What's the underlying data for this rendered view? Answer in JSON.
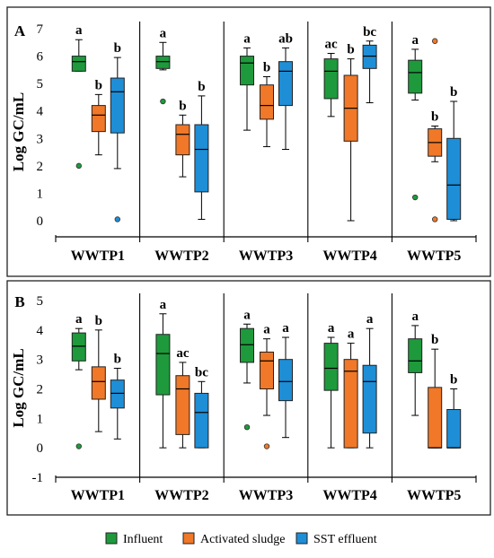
{
  "colors": {
    "influent": "#1e9a3c",
    "activated_sludge": "#f07828",
    "sst_effluent": "#1e8ed6",
    "frame": "#222222"
  },
  "legend": {
    "items": [
      {
        "label": "Influent",
        "color_key": "influent"
      },
      {
        "label": "Activated sludge",
        "color_key": "activated_sludge"
      },
      {
        "label": "SST effluent",
        "color_key": "sst_effluent"
      }
    ]
  },
  "chart_data": [
    {
      "panel": "A",
      "type": "box",
      "ylabel": "Log GC/mL",
      "ylim": [
        -0.3,
        7
      ],
      "yticks": [
        "0",
        "1",
        "2",
        "3",
        "4",
        "5",
        "6",
        "7"
      ],
      "categories": [
        "WWTP1",
        "WWTP2",
        "WWTP3",
        "WWTP4",
        "WWTP5"
      ],
      "series": [
        {
          "name": "Influent",
          "color_key": "influent",
          "boxes": [
            {
              "min": 5.45,
              "q1": 5.45,
              "median": 5.8,
              "q3": 6.0,
              "max": 6.6,
              "outliers": [
                2.0
              ],
              "label": "a"
            },
            {
              "min": 5.5,
              "q1": 5.55,
              "median": 5.8,
              "q3": 6.0,
              "max": 6.5,
              "outliers": [
                4.35
              ],
              "label": "a"
            },
            {
              "min": 3.3,
              "q1": 4.95,
              "median": 5.75,
              "q3": 6.0,
              "max": 6.3,
              "outliers": [],
              "label": "a"
            },
            {
              "min": 3.8,
              "q1": 4.45,
              "median": 5.45,
              "q3": 5.9,
              "max": 6.1,
              "outliers": [],
              "label": "ac"
            },
            {
              "min": 4.4,
              "q1": 4.65,
              "median": 5.4,
              "q3": 5.85,
              "max": 6.25,
              "outliers": [
                0.85
              ],
              "label": "a"
            }
          ]
        },
        {
          "name": "Activated sludge",
          "color_key": "activated_sludge",
          "boxes": [
            {
              "min": 2.4,
              "q1": 3.25,
              "median": 3.85,
              "q3": 4.2,
              "max": 4.6,
              "outliers": [],
              "label": "b"
            },
            {
              "min": 1.6,
              "q1": 2.4,
              "median": 3.15,
              "q3": 3.5,
              "max": 3.85,
              "outliers": [],
              "label": "b"
            },
            {
              "min": 2.7,
              "q1": 3.7,
              "median": 4.2,
              "q3": 4.95,
              "max": 5.25,
              "outliers": [],
              "label": "b"
            },
            {
              "min": 0.0,
              "q1": 2.9,
              "median": 4.1,
              "q3": 5.3,
              "max": 5.9,
              "outliers": [],
              "label": "b"
            },
            {
              "min": 2.15,
              "q1": 2.35,
              "median": 2.85,
              "q3": 3.35,
              "max": 3.45,
              "outliers": [
                0.05,
                6.55
              ],
              "label": "b"
            }
          ]
        },
        {
          "name": "SST effluent",
          "color_key": "sst_effluent",
          "boxes": [
            {
              "min": 1.9,
              "q1": 3.2,
              "median": 4.7,
              "q3": 5.2,
              "max": 5.95,
              "outliers": [
                0.05
              ],
              "label": "b"
            },
            {
              "min": 0.05,
              "q1": 1.05,
              "median": 2.6,
              "q3": 3.5,
              "max": 4.55,
              "outliers": [],
              "label": "b"
            },
            {
              "min": 2.6,
              "q1": 4.2,
              "median": 5.45,
              "q3": 5.8,
              "max": 6.3,
              "outliers": [],
              "label": "ab"
            },
            {
              "min": 4.3,
              "q1": 5.55,
              "median": 6.0,
              "q3": 6.4,
              "max": 6.55,
              "outliers": [],
              "label": "bc"
            },
            {
              "min": 0.0,
              "q1": 0.05,
              "median": 1.3,
              "q3": 3.0,
              "max": 4.35,
              "outliers": [],
              "label": "b"
            }
          ]
        }
      ]
    },
    {
      "panel": "B",
      "type": "box",
      "ylabel": "Log GC/mL",
      "ylim": [
        -1,
        5
      ],
      "yticks": [
        "-1",
        "0",
        "1",
        "2",
        "3",
        "4",
        "5"
      ],
      "categories": [
        "WWTP1",
        "WWTP2",
        "WWTP3",
        "WWTP4",
        "WWTP5"
      ],
      "series": [
        {
          "name": "Influent",
          "color_key": "influent",
          "boxes": [
            {
              "min": 2.65,
              "q1": 2.95,
              "median": 3.45,
              "q3": 3.9,
              "max": 4.05,
              "outliers": [
                0.05
              ],
              "label": "a"
            },
            {
              "min": 0.0,
              "q1": 1.8,
              "median": 3.2,
              "q3": 3.85,
              "max": 4.55,
              "outliers": [],
              "label": "a"
            },
            {
              "min": 2.2,
              "q1": 2.9,
              "median": 3.5,
              "q3": 4.05,
              "max": 4.2,
              "outliers": [
                0.7
              ],
              "label": "a"
            },
            {
              "min": 0.0,
              "q1": 1.95,
              "median": 2.7,
              "q3": 3.55,
              "max": 3.75,
              "outliers": [],
              "label": "a"
            },
            {
              "min": 1.1,
              "q1": 2.55,
              "median": 2.95,
              "q3": 3.7,
              "max": 4.15,
              "outliers": [],
              "label": "a"
            }
          ]
        },
        {
          "name": "Activated sludge",
          "color_key": "activated_sludge",
          "boxes": [
            {
              "min": 0.55,
              "q1": 1.65,
              "median": 2.25,
              "q3": 2.75,
              "max": 4.0,
              "outliers": [],
              "label": "b"
            },
            {
              "min": 0.0,
              "q1": 0.45,
              "median": 2.0,
              "q3": 2.45,
              "max": 2.9,
              "outliers": [],
              "label": "ac"
            },
            {
              "min": 1.1,
              "q1": 2.0,
              "median": 2.95,
              "q3": 3.25,
              "max": 3.7,
              "outliers": [
                0.05
              ],
              "label": "a"
            },
            {
              "min": 0.0,
              "q1": 0.0,
              "median": 2.6,
              "q3": 3.0,
              "max": 3.55,
              "outliers": [],
              "label": "a"
            },
            {
              "min": 0.0,
              "q1": 0.0,
              "median": 0.0,
              "q3": 2.05,
              "max": 3.35,
              "outliers": [],
              "label": "b"
            }
          ]
        },
        {
          "name": "SST effluent",
          "color_key": "sst_effluent",
          "boxes": [
            {
              "min": 0.3,
              "q1": 1.35,
              "median": 1.85,
              "q3": 2.3,
              "max": 2.7,
              "outliers": [],
              "label": "b"
            },
            {
              "min": 0.0,
              "q1": 0.0,
              "median": 1.2,
              "q3": 1.85,
              "max": 2.25,
              "outliers": [],
              "label": "bc"
            },
            {
              "min": 0.35,
              "q1": 1.6,
              "median": 2.25,
              "q3": 3.0,
              "max": 3.75,
              "outliers": [],
              "label": "a"
            },
            {
              "min": 0.0,
              "q1": 0.5,
              "median": 2.25,
              "q3": 2.8,
              "max": 4.05,
              "outliers": [],
              "label": "a"
            },
            {
              "min": 0.0,
              "q1": 0.0,
              "median": 0.0,
              "q3": 1.3,
              "max": 2.0,
              "outliers": [],
              "label": "b"
            }
          ]
        }
      ]
    }
  ]
}
